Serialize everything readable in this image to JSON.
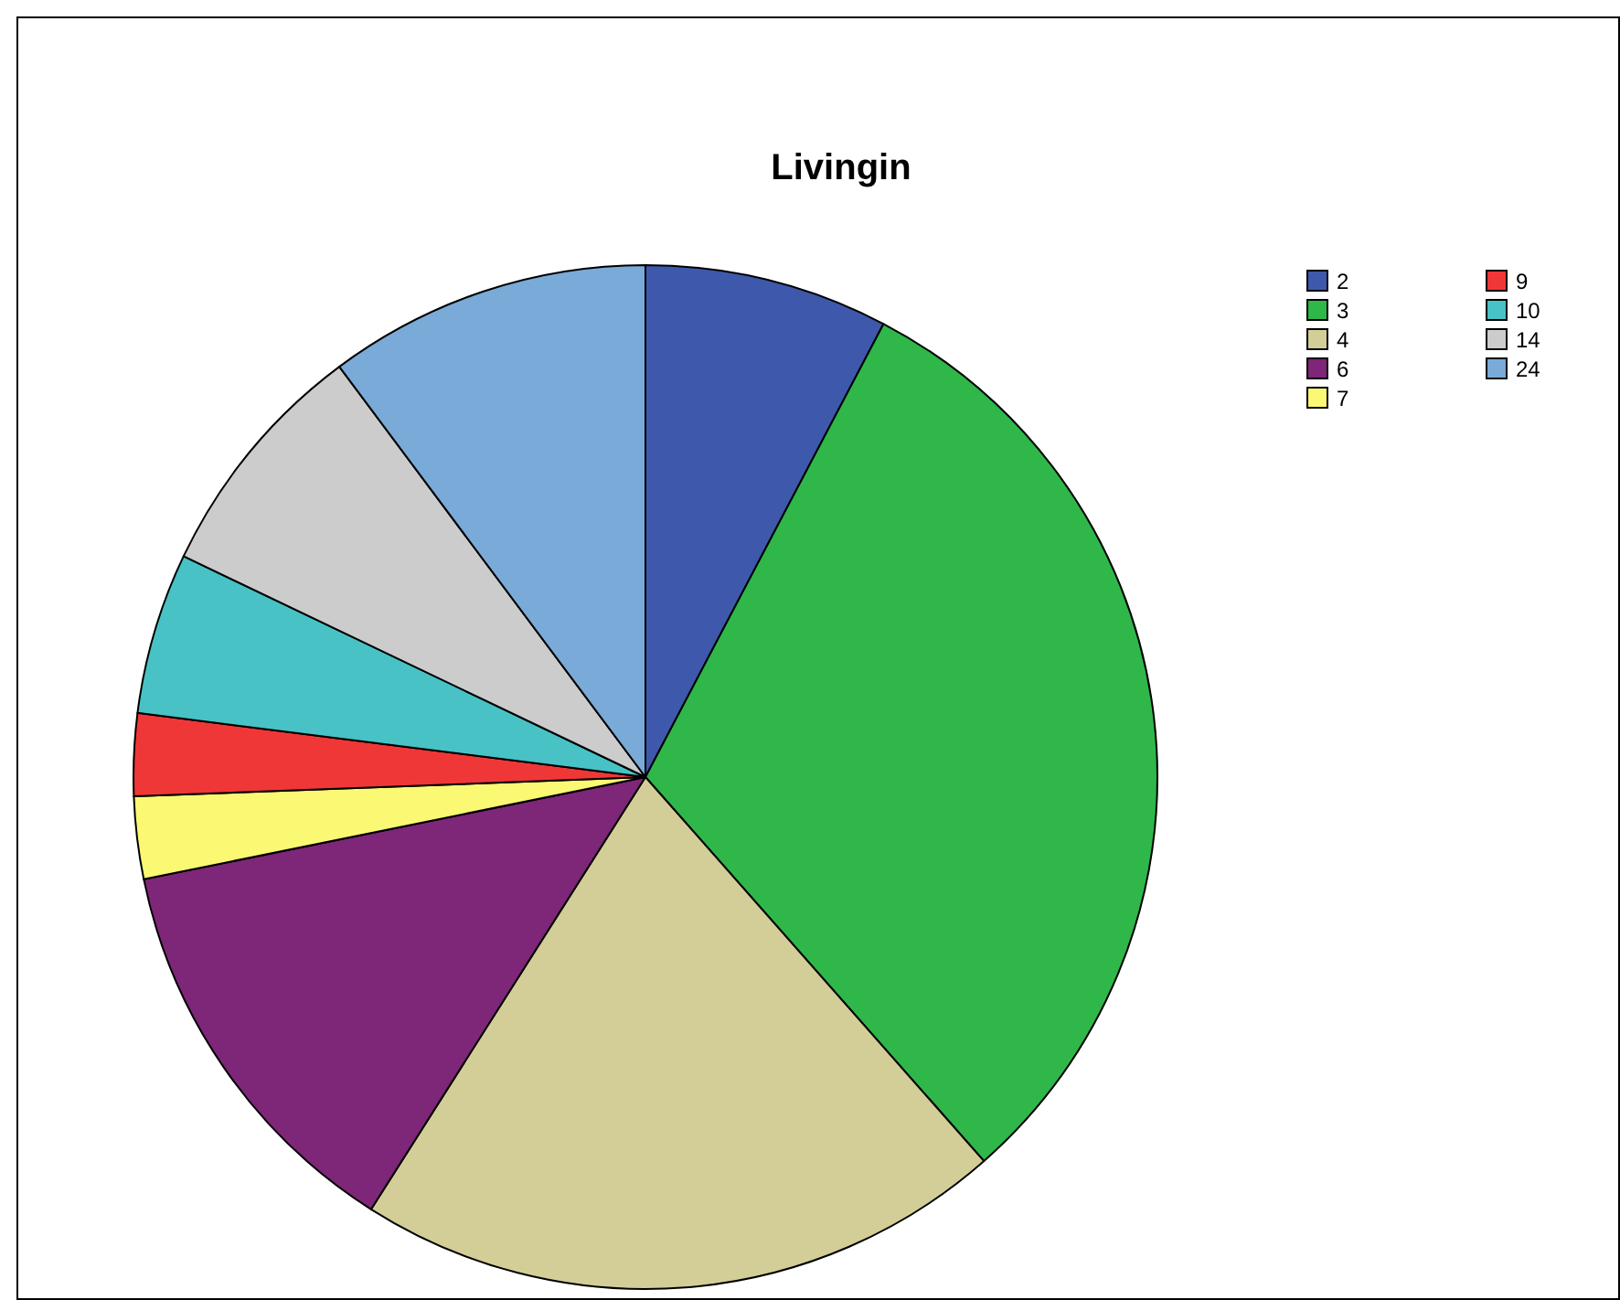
{
  "chart_data": {
    "type": "pie",
    "title": "Livingin",
    "categories": [
      "2",
      "3",
      "4",
      "6",
      "7",
      "9",
      "10",
      "14",
      "24"
    ],
    "values": [
      7.7,
      30.8,
      20.5,
      12.8,
      2.6,
      2.6,
      5.1,
      7.7,
      10.2
    ],
    "colors": [
      "#3e58ac",
      "#2fb74a",
      "#d3ce97",
      "#7e2677",
      "#fbf873",
      "#ef3737",
      "#48c2c5",
      "#cccccc",
      "#7aaad7"
    ],
    "legend": "top right"
  }
}
